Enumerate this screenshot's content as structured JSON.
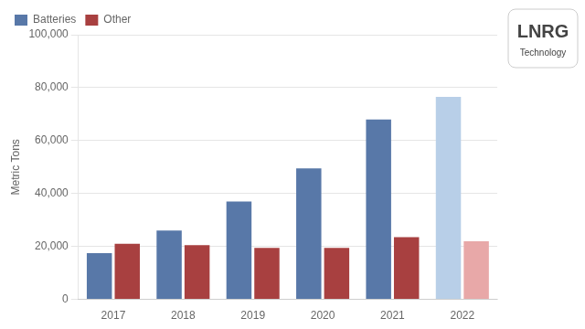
{
  "chart_data": {
    "type": "bar",
    "ylabel": "Metric Tons",
    "categories": [
      "2017",
      "2018",
      "2019",
      "2020",
      "2021",
      "2022"
    ],
    "series": [
      {
        "name": "Batteries",
        "values": [
          17500,
          26000,
          37000,
          49500,
          68000,
          76500
        ],
        "colors": [
          "#5878a8",
          "#5878a8",
          "#5878a8",
          "#5878a8",
          "#5878a8",
          "#b8cfe8"
        ]
      },
      {
        "name": "Other",
        "values": [
          21000,
          20500,
          19500,
          19500,
          23500,
          22000
        ],
        "colors": [
          "#a84040",
          "#a84040",
          "#a84040",
          "#a84040",
          "#a84040",
          "#e8a8a8"
        ]
      }
    ],
    "ylim": [
      0,
      100000
    ],
    "yticks": [
      0,
      {
        "value": 20000,
        "label": "20,000"
      },
      {
        "value": 40000,
        "label": "40,000"
      },
      {
        "value": 60000,
        "label": "60,000"
      },
      {
        "value": 80000,
        "label": "80,000"
      },
      {
        "value": 100000,
        "label": "100,000"
      }
    ],
    "grid": true,
    "legend": "upper left",
    "annotations": [
      "LNRG",
      "Technology"
    ]
  }
}
